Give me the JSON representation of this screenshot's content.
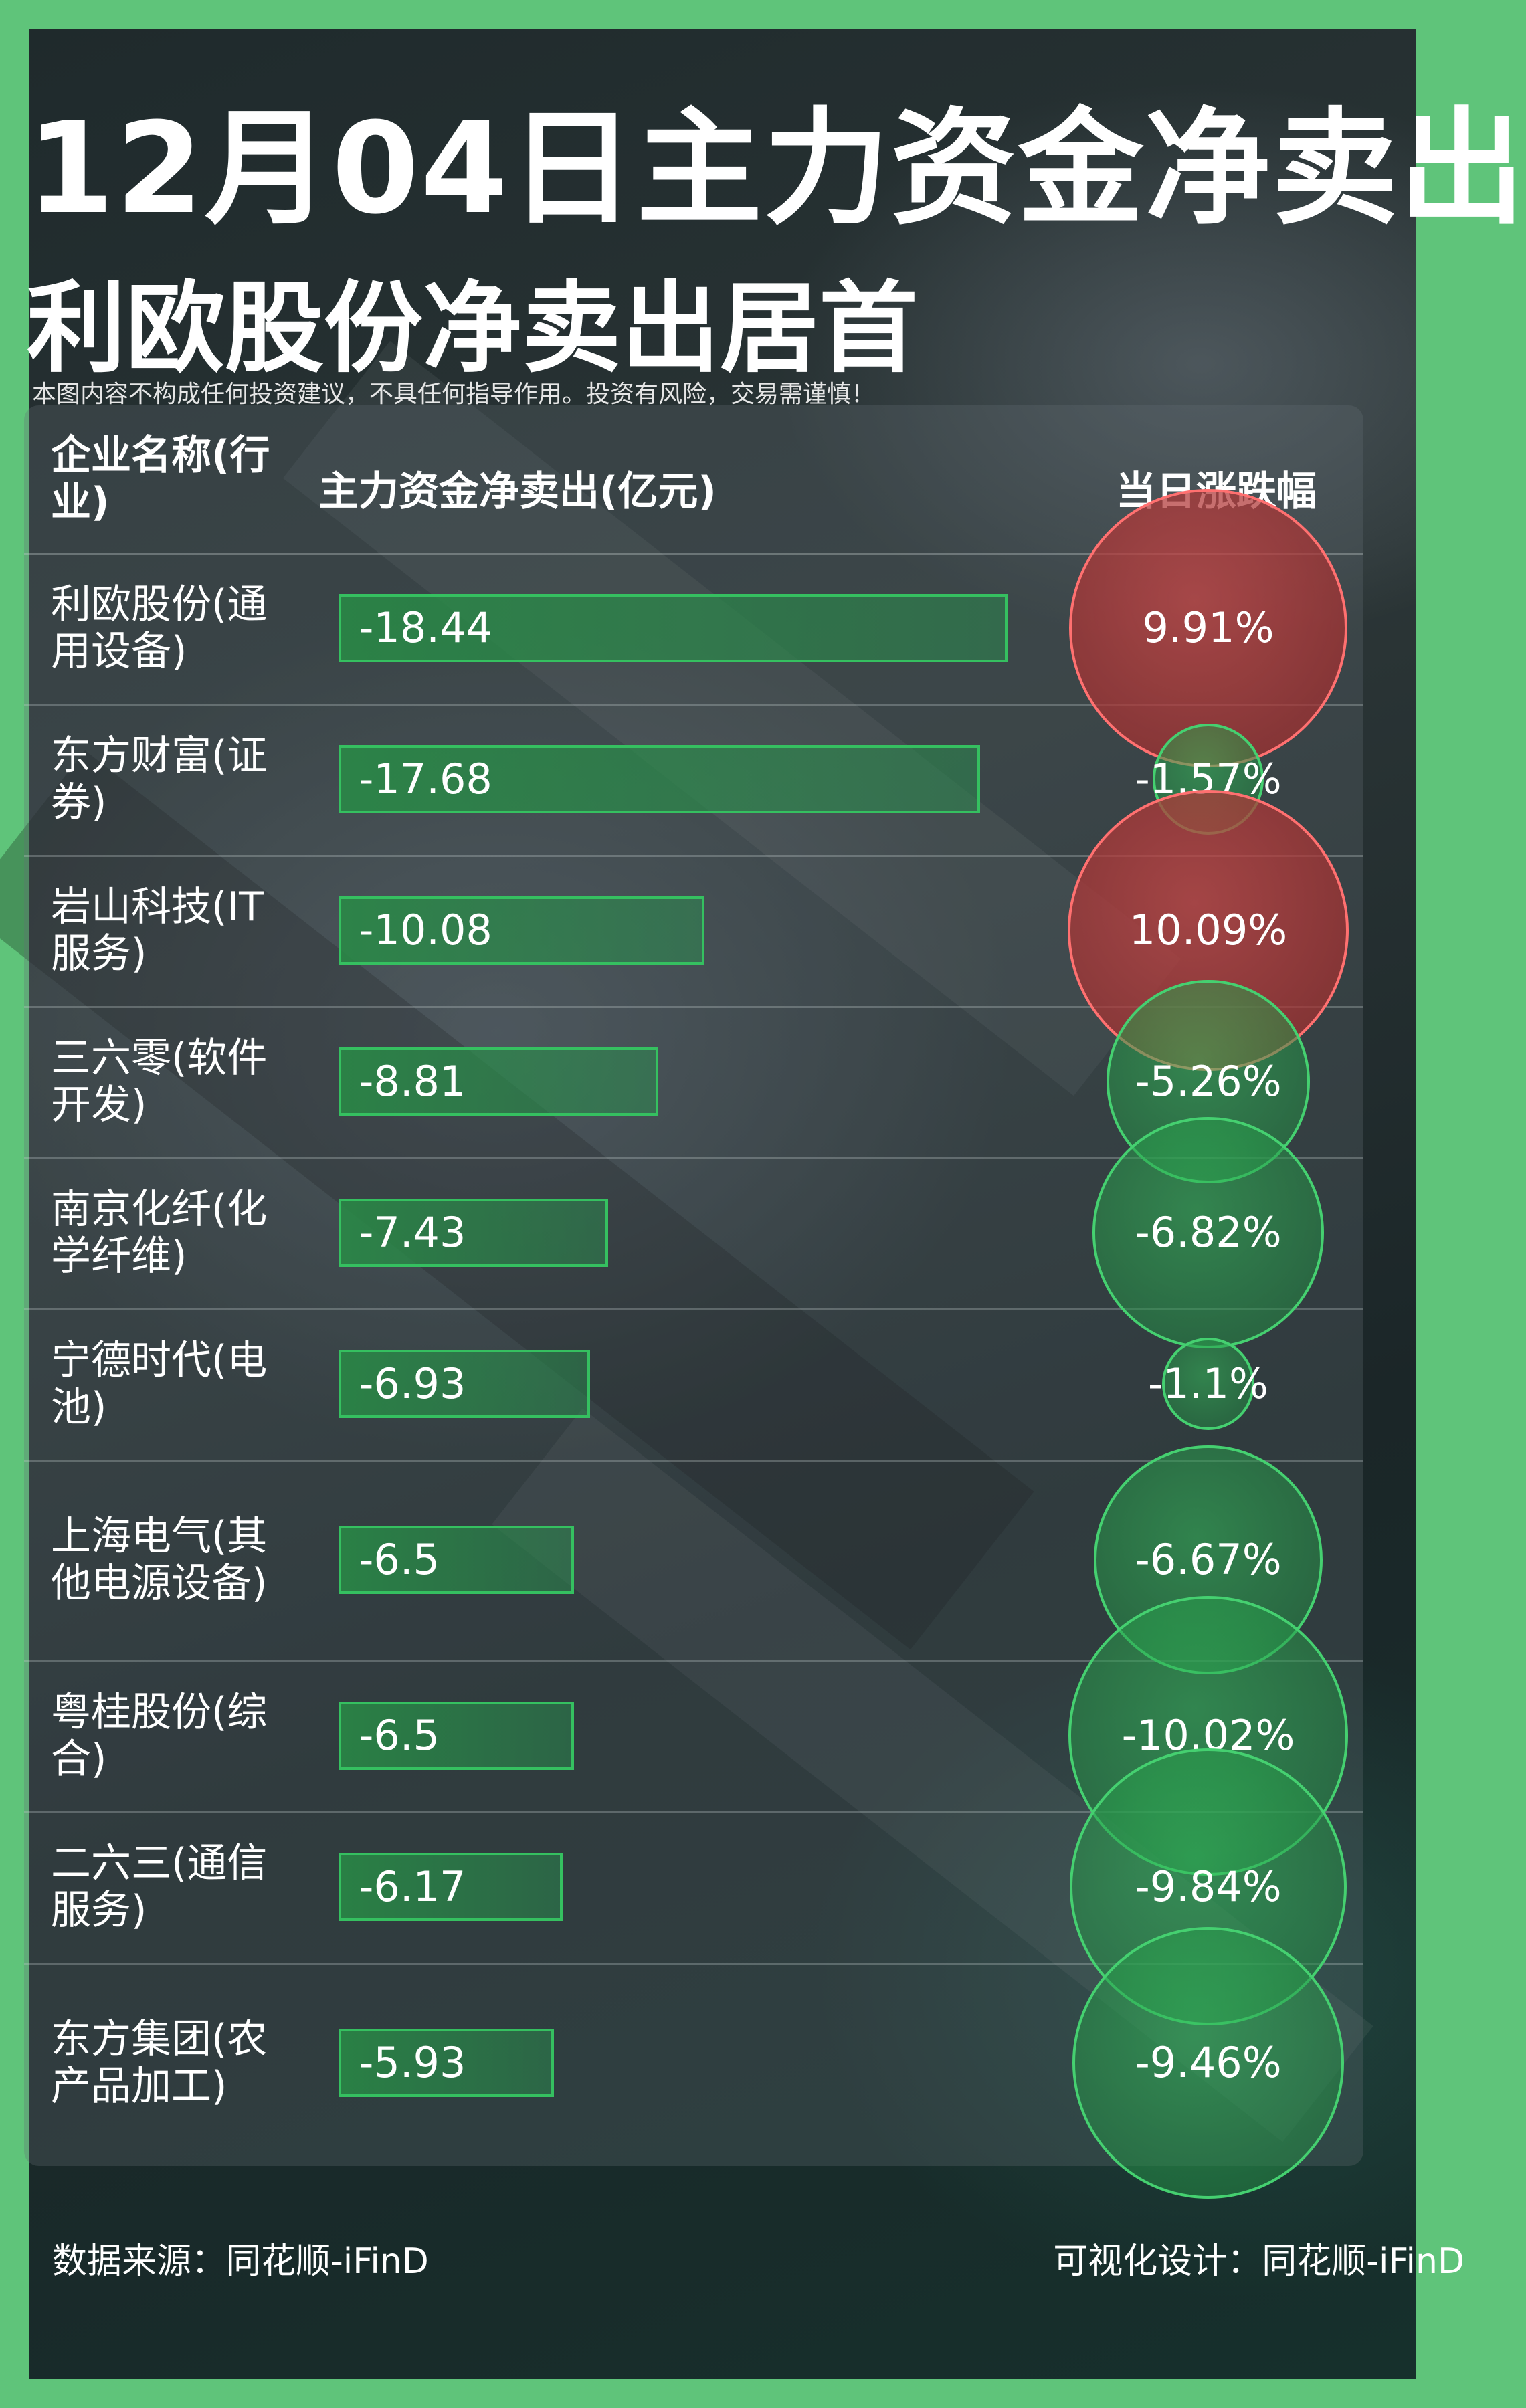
{
  "title": "12月04日主力资金净卖出",
  "subtitle": "利欧股份净卖出居首",
  "disclaimer": "本图内容不构成任何投资建议，不具任何指导作用。投资有风险，交易需谨慎！",
  "table_header": {
    "name": "企业名称(行业)",
    "value": "主力资金净卖出(亿元)",
    "change": "当日涨跌幅"
  },
  "footer": {
    "source": "数据来源：同花顺-iFinD",
    "design": "可视化设计：同花顺-iFinD"
  },
  "colors": {
    "rise": "#c84646",
    "fall": "#35c060",
    "frame": "#5fc47a"
  },
  "chart_data": {
    "type": "bar",
    "title": "12月04日主力资金净卖出",
    "categories": [
      "利欧股份(通用设备)",
      "东方财富(证券)",
      "岩山科技(IT服务)",
      "三六零(软件开发)",
      "南京化纤(化学纤维)",
      "宁德时代(电池)",
      "上海电气(其他电源设备)",
      "粤桂股份(综合)",
      "二六三(通信服务)",
      "东方集团(农产品加工)"
    ],
    "series": [
      {
        "name": "主力资金净卖出(亿元)",
        "values": [
          -18.44,
          -17.68,
          -10.08,
          -8.81,
          -7.43,
          -6.93,
          -6.5,
          -6.5,
          -6.17,
          -5.93
        ]
      },
      {
        "name": "当日涨跌幅",
        "values": [
          9.91,
          -1.57,
          10.09,
          -5.26,
          -6.82,
          -1.1,
          -6.67,
          -10.02,
          -9.84,
          -9.46
        ]
      }
    ],
    "rows": [
      {
        "name": "利欧股份(通用设备)",
        "value_label": "-18.44",
        "change_label": "9.91%"
      },
      {
        "name": "东方财富(证券)",
        "value_label": "-17.68",
        "change_label": "-1.57%"
      },
      {
        "name": "岩山科技(IT服务)",
        "value_label": "-10.08",
        "change_label": "10.09%"
      },
      {
        "name": "三六零(软件开发)",
        "value_label": "-8.81",
        "change_label": "-5.26%"
      },
      {
        "name": "南京化纤(化学纤维)",
        "value_label": "-7.43",
        "change_label": "-6.82%"
      },
      {
        "name": "宁德时代(电池)",
        "value_label": "-6.93",
        "change_label": "-1.1%"
      },
      {
        "name": "上海电气(其他电源设备)",
        "value_label": "-6.5",
        "change_label": "-6.67%"
      },
      {
        "name": "粤桂股份(综合)",
        "value_label": "-6.5",
        "change_label": "-10.02%"
      },
      {
        "name": "二六三(通信服务)",
        "value_label": "-6.17",
        "change_label": "-9.84%"
      },
      {
        "name": "东方集团(农产品加工)",
        "value_label": "-5.93",
        "change_label": "-9.46%"
      }
    ]
  }
}
